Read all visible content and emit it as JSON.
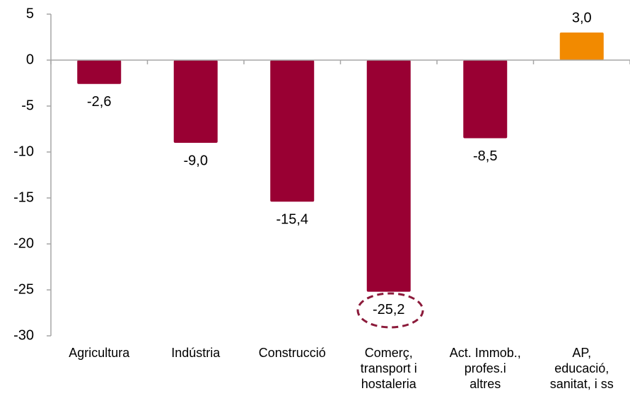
{
  "chart_data": {
    "type": "bar",
    "categories": [
      "Agricultura",
      "Indústria",
      "Construcció",
      "Comerç,\ntransport i\nhostaleria",
      "Act. Immob.,\nprofes.i\naltres",
      "AP,\neducació,\nsanitat, i ss"
    ],
    "values": [
      -2.6,
      -9.0,
      -15.4,
      -25.2,
      -8.5,
      3.0
    ],
    "value_labels": [
      "-2,6",
      "-9,0",
      "-15,4",
      "-25,2",
      "-8,5",
      "3,0"
    ],
    "colors": [
      "#990033",
      "#990033",
      "#990033",
      "#990033",
      "#990033",
      "#f28a00"
    ],
    "ylim": [
      -30,
      5
    ],
    "yticks": [
      -30,
      -25,
      -20,
      -15,
      -10,
      -5,
      0,
      5
    ]
  }
}
